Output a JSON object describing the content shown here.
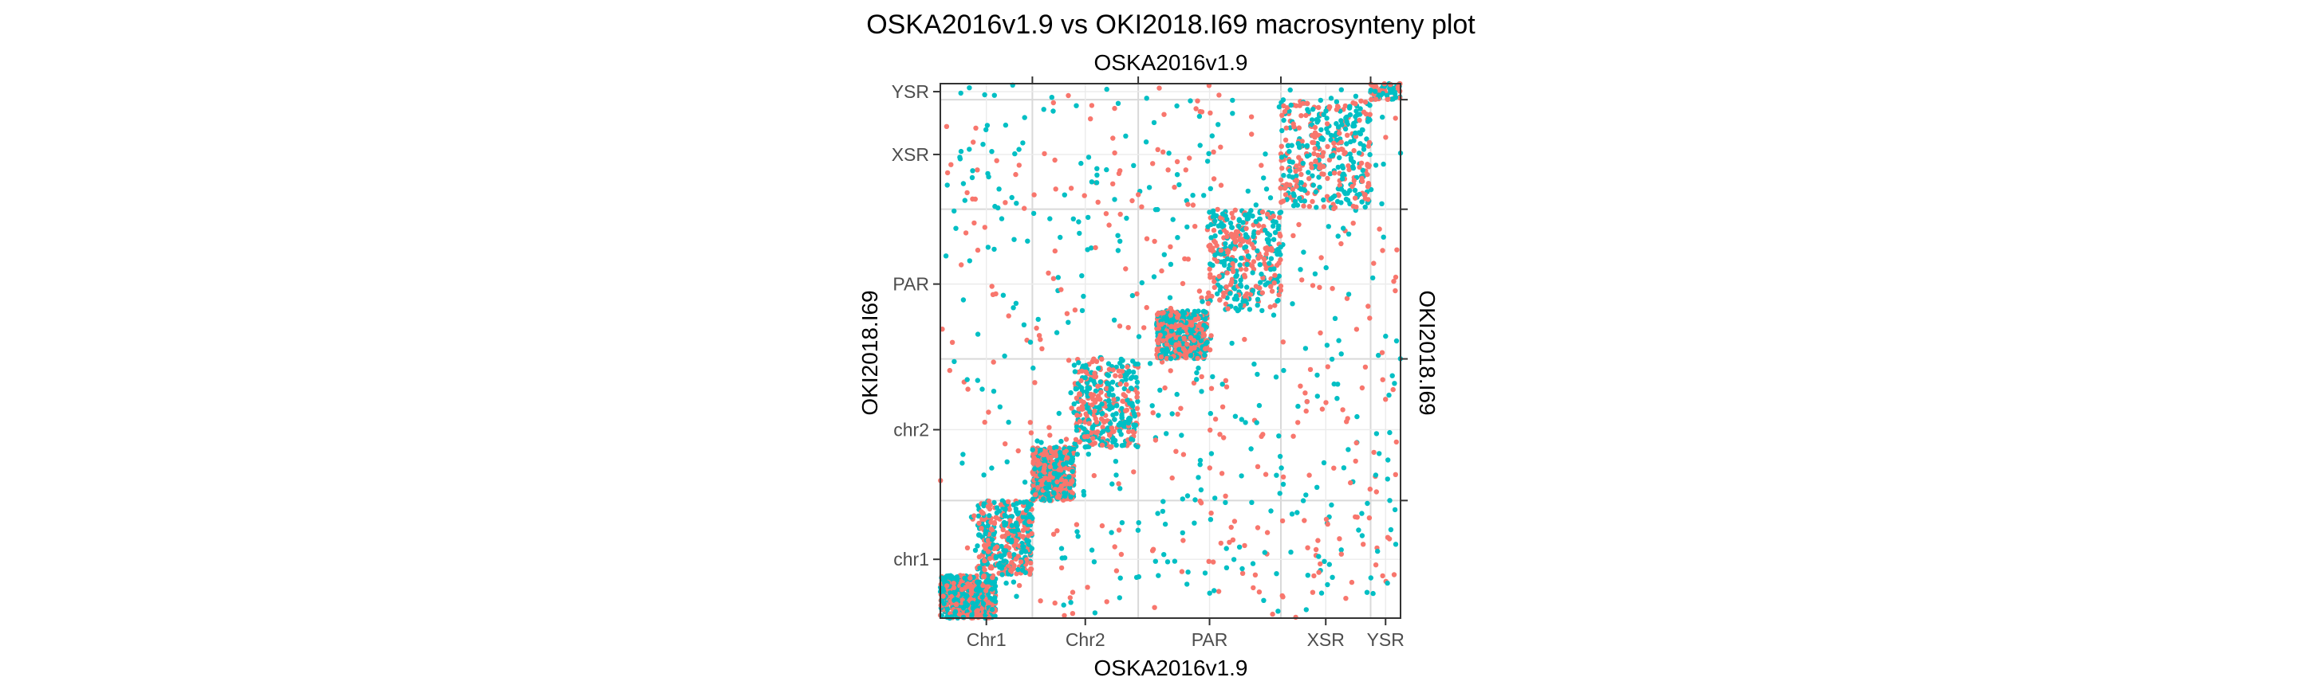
{
  "chart_data": {
    "type": "scatter",
    "title": "OSKA2016v1.9 vs OKI2018.I69 macrosynteny plot",
    "xlabel": "OSKA2016v1.9",
    "ylabel": "OKI2018.I69",
    "x_top_label": "OSKA2016v1.9",
    "y_right_label": "OKI2018.I69",
    "x_tick_labels": [
      "Chr1",
      "Chr2",
      "PAR",
      "XSR",
      "YSR"
    ],
    "y_tick_labels": [
      "chr1",
      "chr2",
      "PAR",
      "XSR",
      "YSR"
    ],
    "grid": true,
    "legend": "none",
    "x_boundaries": [
      0,
      0.2,
      0.43,
      0.74,
      0.935,
      1.0
    ],
    "y_boundaries": [
      0,
      0.22,
      0.485,
      0.765,
      0.97,
      1.0
    ],
    "series_colors": [
      "#f8766d",
      "#00bfc4"
    ],
    "diagonal_blocks": [
      {
        "x": [
          0.0,
          0.12
        ],
        "y": [
          0.0,
          0.08
        ],
        "density": "high"
      },
      {
        "x": [
          0.08,
          0.2
        ],
        "y": [
          0.08,
          0.22
        ],
        "density": "medium"
      },
      {
        "x": [
          0.2,
          0.29
        ],
        "y": [
          0.22,
          0.32
        ],
        "density": "high"
      },
      {
        "x": [
          0.29,
          0.43
        ],
        "y": [
          0.32,
          0.485
        ],
        "density": "medium"
      },
      {
        "x": [
          0.47,
          0.58
        ],
        "y": [
          0.485,
          0.575
        ],
        "density": "high"
      },
      {
        "x": [
          0.58,
          0.74
        ],
        "y": [
          0.575,
          0.765
        ],
        "density": "medium"
      },
      {
        "x": [
          0.74,
          0.935
        ],
        "y": [
          0.765,
          0.97
        ],
        "density": "medium"
      },
      {
        "x": [
          0.935,
          1.0
        ],
        "y": [
          0.97,
          1.0
        ],
        "density": "low"
      }
    ],
    "background_points": 750
  }
}
